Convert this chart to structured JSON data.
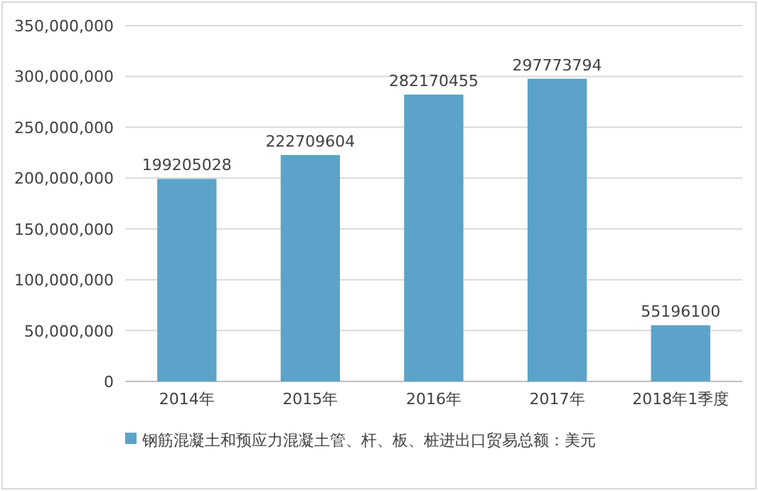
{
  "chart_data": {
    "type": "bar",
    "categories": [
      "2014年",
      "2015年",
      "2016年",
      "2017年",
      "2018年1季度"
    ],
    "series": [
      {
        "name": "钢筋混凝土和预应力混凝土管、杆、板、桩进出口贸易总额：美元",
        "color": "#5ba3c8",
        "values": [
          199205028,
          222709604,
          282170455,
          297773794,
          55196100
        ]
      }
    ],
    "ylim": [
      0,
      350000000
    ],
    "yticks": [
      0,
      {
        "value": 50000000,
        "label": "50,000,000"
      },
      {
        "value": 100000000,
        "label": "100,000,000"
      },
      {
        "value": 150000000,
        "label": "150,000,000"
      },
      {
        "value": 200000000,
        "label": "200,000,000"
      },
      {
        "value": 250000000,
        "label": "250,000,000"
      },
      {
        "value": 300000000,
        "label": "300,000,000"
      },
      {
        "value": 350000000,
        "label": "350,000,000"
      }
    ],
    "grid": "y",
    "legend": "bottom",
    "data_labels": true
  }
}
